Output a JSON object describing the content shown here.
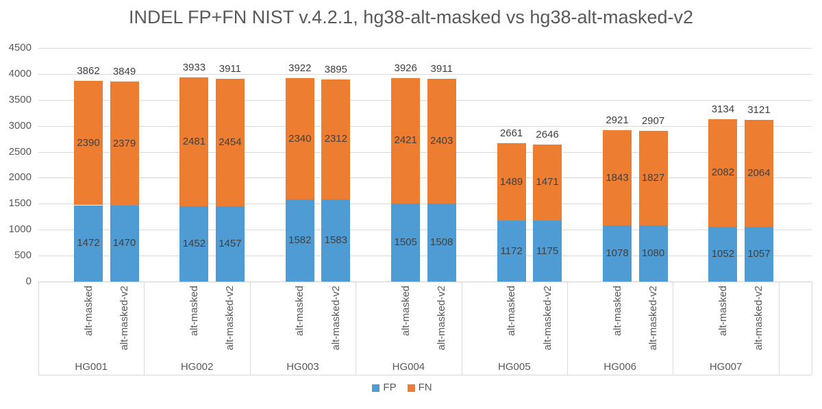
{
  "page": {
    "background": "#FFFFFF"
  },
  "chart_data": {
    "type": "bar",
    "stacked": true,
    "title": "INDEL FP+FN NIST v.4.2.1, hg38-alt-masked vs hg38-alt-masked-v2",
    "grid": true,
    "legend_position": "bottom",
    "y_axis": {
      "min": 0,
      "max": 4500,
      "step": 500,
      "tick_labels": [
        "0",
        "500",
        "1000",
        "1500",
        "2000",
        "2500",
        "3000",
        "3500",
        "4000",
        "4500"
      ]
    },
    "x_axis": {
      "groups": [
        "HG001",
        "HG002",
        "HG003",
        "HG004",
        "HG005",
        "HG006",
        "HG007"
      ],
      "bar_labels": [
        "alt-masked",
        "alt-masked-v2"
      ]
    },
    "series": [
      {
        "name": "FP",
        "color": "#4E9CD3",
        "values": [
          [
            1472,
            1470
          ],
          [
            1452,
            1457
          ],
          [
            1582,
            1583
          ],
          [
            1505,
            1508
          ],
          [
            1172,
            1175
          ],
          [
            1078,
            1080
          ],
          [
            1052,
            1057
          ]
        ]
      },
      {
        "name": "FN",
        "color": "#ED7D31",
        "values": [
          [
            2390,
            2379
          ],
          [
            2481,
            2454
          ],
          [
            2340,
            2312
          ],
          [
            2421,
            2403
          ],
          [
            1489,
            1471
          ],
          [
            1843,
            1827
          ],
          [
            2082,
            2064
          ]
        ]
      }
    ],
    "totals": [
      [
        3862,
        3849
      ],
      [
        3933,
        3911
      ],
      [
        3922,
        3895
      ],
      [
        3926,
        3911
      ],
      [
        2661,
        2646
      ],
      [
        2921,
        2907
      ],
      [
        3134,
        3121
      ]
    ],
    "legend": [
      {
        "label": "FP",
        "color": "#4E9CD3"
      },
      {
        "label": "FN",
        "color": "#ED7D31"
      }
    ]
  },
  "colors": {
    "grid": "#D9D9D9",
    "axis_line": "#CFCFCF",
    "axis_text": "#595959",
    "title_text": "#595959",
    "data_label": "#3F3F3F"
  }
}
